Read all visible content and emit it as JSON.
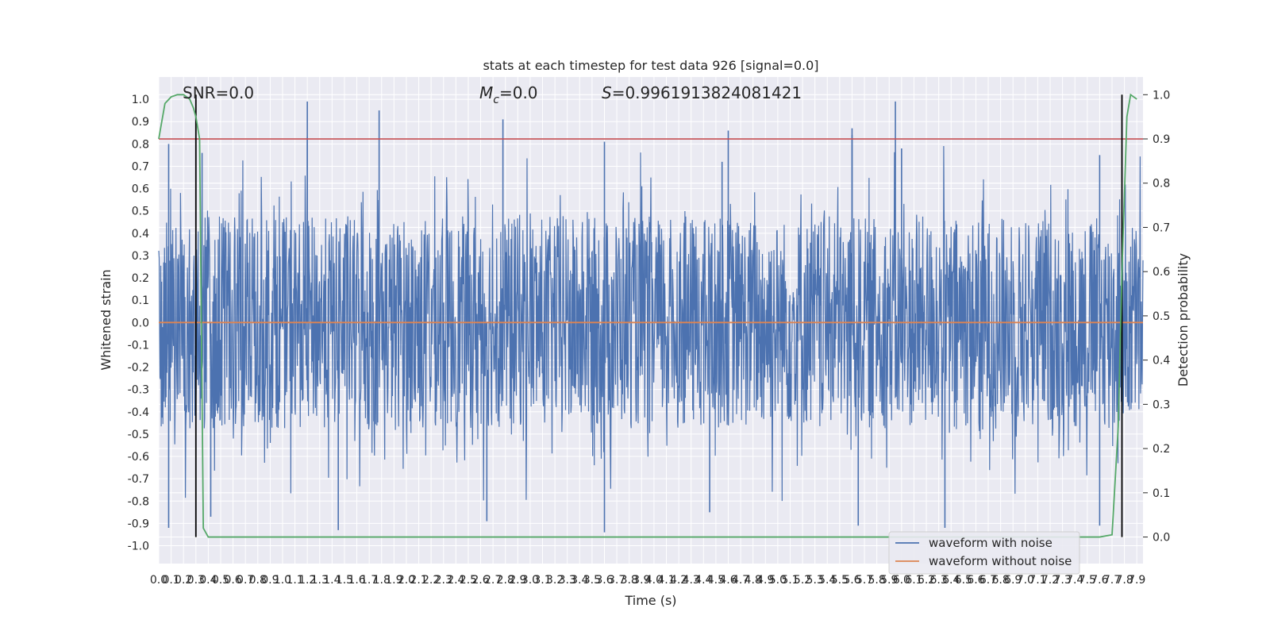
{
  "chart_data": {
    "type": "line",
    "title": "stats at each timestep for test data 926 [signal=0.0]",
    "xlabel": "Time (s)",
    "ylabel": "Whitened strain",
    "y2label": "Detection probability",
    "xlim": [
      0.0,
      7.95
    ],
    "ylim": [
      -1.08,
      1.1
    ],
    "y2lim": [
      -0.06,
      1.04
    ],
    "grid": true,
    "legend_position": "bottom-right",
    "x_ticks": [
      0.0,
      0.1,
      0.2,
      0.3,
      0.4,
      0.5,
      0.6,
      0.7,
      0.8,
      0.9,
      1.0,
      1.1,
      1.2,
      1.3,
      1.4,
      1.5,
      1.6,
      1.7,
      1.8,
      1.9,
      2.0,
      2.1,
      2.2,
      2.3,
      2.4,
      2.5,
      2.6,
      2.7,
      2.8,
      2.9,
      3.0,
      3.1,
      3.2,
      3.3,
      3.4,
      3.5,
      3.6,
      3.7,
      3.8,
      3.9,
      4.0,
      4.1,
      4.2,
      4.3,
      4.4,
      4.5,
      4.6,
      4.7,
      4.8,
      4.9,
      5.0,
      5.1,
      5.2,
      5.3,
      5.4,
      5.5,
      5.6,
      5.7,
      5.8,
      5.9,
      6.0,
      6.1,
      6.2,
      6.3,
      6.4,
      6.5,
      6.6,
      6.7,
      6.8,
      6.9,
      7.0,
      7.1,
      7.2,
      7.3,
      7.4,
      7.5,
      7.6,
      7.7,
      7.8,
      7.9
    ],
    "y_ticks": [
      "1.0",
      "0.9",
      "0.8",
      "0.7",
      "0.6",
      "0.5",
      "0.4",
      "0.3",
      "0.2",
      "0.1",
      "0.0",
      "-0.1",
      "-0.2",
      "-0.3",
      "-0.4",
      "-0.5",
      "-0.6",
      "-0.7",
      "-0.8",
      "-0.9",
      "-1.0"
    ],
    "y2_ticks": [
      "1.0",
      "0.9",
      "0.8",
      "0.7",
      "0.6",
      "0.5",
      "0.4",
      "0.3",
      "0.2",
      "0.1",
      "0.0"
    ],
    "annotations": {
      "snr": "SNR=0.0",
      "mc_symbol": "M",
      "mc_sub": "c",
      "mc_value": "=0.0",
      "s_symbol": "S",
      "s_value": "=0.9961913824081421"
    },
    "series": [
      {
        "name": "waveform with noise",
        "color": "#4c72b0",
        "axis": "left",
        "note_shape": "dense noise; envelope approx +/-0.45 core with spikes to +/-1.0",
        "peaks_positive": [
          [
            0.08,
            0.8
          ],
          [
            0.35,
            0.76
          ],
          [
            1.2,
            0.99
          ],
          [
            1.2,
            0.83
          ],
          [
            1.78,
            0.95
          ],
          [
            2.78,
            0.91
          ],
          [
            3.6,
            0.81
          ],
          [
            4.55,
            0.72
          ],
          [
            4.6,
            0.86
          ],
          [
            5.6,
            0.87
          ],
          [
            5.6,
            0.84
          ],
          [
            5.95,
            0.99
          ],
          [
            6.0,
            0.78
          ],
          [
            7.6,
            0.75
          ]
        ],
        "peaks_negative": [
          [
            0.08,
            -0.92
          ],
          [
            0.42,
            -0.87
          ],
          [
            1.45,
            -0.93
          ],
          [
            2.65,
            -0.89
          ],
          [
            3.6,
            -0.94
          ],
          [
            4.45,
            -0.85
          ],
          [
            5.65,
            -0.91
          ],
          [
            6.35,
            -0.92
          ],
          [
            7.6,
            -0.91
          ]
        ]
      },
      {
        "name": "waveform without noise",
        "color": "#dd8452",
        "axis": "left",
        "x": [
          0.0,
          7.95
        ],
        "y": [
          0.0,
          0.0
        ]
      },
      {
        "name": "",
        "color": "#55a868",
        "axis": "right",
        "x": [
          0.0,
          0.05,
          0.1,
          0.15,
          0.2,
          0.25,
          0.28,
          0.3,
          0.33,
          0.36,
          0.4,
          0.5,
          1.0,
          2.0,
          3.0,
          4.0,
          5.0,
          6.0,
          7.0,
          7.5,
          7.6,
          7.7,
          7.75,
          7.78,
          7.82,
          7.85,
          7.9
        ],
        "y": [
          0.9,
          0.98,
          0.995,
          1.0,
          1.0,
          0.99,
          0.97,
          0.95,
          0.9,
          0.02,
          0.0,
          0.0,
          0.0,
          0.0,
          0.0,
          0.0,
          0.0,
          0.0,
          0.0,
          0.0,
          0.0,
          0.005,
          0.25,
          0.6,
          0.95,
          1.0,
          0.99
        ]
      }
    ],
    "threshold_line": {
      "y2": 0.9,
      "color": "#c44e52"
    },
    "vertical_lines": [
      0.3,
      7.78
    ]
  }
}
